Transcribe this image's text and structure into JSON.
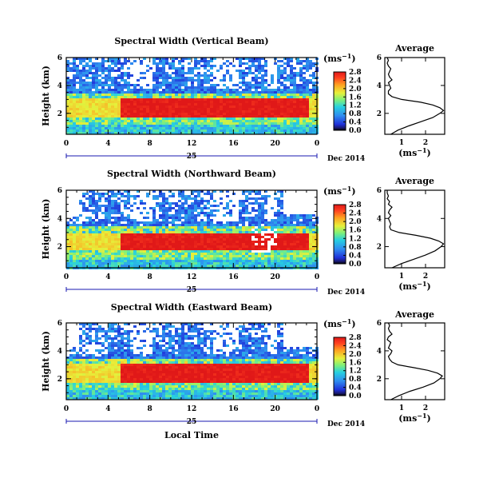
{
  "figure": {
    "xlabel": "Local Time",
    "colorbar_unit": "(ms",
    "colorbar_unit_exp": "−1",
    "avg_title": "Average",
    "avg_xlabel": "(ms",
    "avg_xlabel_exp": "−1",
    "day_label": "25",
    "month_label": "Dec 2014"
  },
  "chart_data": [
    {
      "type": "heatmap",
      "title": "Spectral Width (Vertical Beam)",
      "ylabel": "Height (km)",
      "xlabel": "Local Time",
      "x_ticks": [
        "0",
        "4",
        "8",
        "12",
        "16",
        "20",
        "0"
      ],
      "y_ticks": [
        "2",
        "4",
        "6"
      ],
      "xlim": [
        0,
        24
      ],
      "ylim": [
        0.5,
        6
      ],
      "colorbar": {
        "label": "(ms−1)",
        "range": [
          0.0,
          2.8
        ],
        "ticks": [
          "0.0",
          "0.4",
          "0.8",
          "1.2",
          "1.6",
          "2.0",
          "2.4",
          "2.8"
        ]
      },
      "average_profile": {
        "title": "Average",
        "xlabel": "(ms−1)",
        "x_ticks": [
          "1",
          "2"
        ],
        "y_ticks": [
          "2",
          "4",
          "6"
        ],
        "xlim": [
          0.3,
          2.8
        ],
        "ylim": [
          0.5,
          6
        ],
        "height_km": [
          0.5,
          0.8,
          1.1,
          1.4,
          1.7,
          2.0,
          2.2,
          2.4,
          2.6,
          2.8,
          3.0,
          3.2,
          3.4,
          3.6,
          3.8,
          4.0,
          4.2,
          4.4,
          4.6,
          4.8,
          5.0,
          5.2,
          5.4,
          5.6,
          5.8,
          6.0
        ],
        "width_ms": [
          0.55,
          0.85,
          1.3,
          1.8,
          2.3,
          2.6,
          2.75,
          2.6,
          2.3,
          1.8,
          1.0,
          0.6,
          0.45,
          0.45,
          0.55,
          0.5,
          0.45,
          0.6,
          0.5,
          0.45,
          0.5,
          0.55,
          0.45,
          0.4,
          0.45,
          0.4
        ]
      }
    },
    {
      "type": "heatmap",
      "title": "Spectral Width (Northward Beam)",
      "ylabel": "Height (km)",
      "xlabel": "Local Time",
      "x_ticks": [
        "0",
        "4",
        "8",
        "12",
        "16",
        "20",
        "0"
      ],
      "y_ticks": [
        "2",
        "4",
        "6"
      ],
      "xlim": [
        0,
        24
      ],
      "ylim": [
        0.5,
        6
      ],
      "colorbar": {
        "label": "(ms−1)",
        "range": [
          0.0,
          2.8
        ],
        "ticks": [
          "0.0",
          "0.4",
          "0.8",
          "1.2",
          "1.6",
          "2.0",
          "2.4",
          "2.8"
        ]
      },
      "average_profile": {
        "title": "Average",
        "xlabel": "(ms−1)",
        "x_ticks": [
          "1",
          "2"
        ],
        "y_ticks": [
          "2",
          "4",
          "6"
        ],
        "xlim": [
          0.3,
          2.8
        ],
        "ylim": [
          0.5,
          6
        ],
        "height_km": [
          0.5,
          0.8,
          1.1,
          1.4,
          1.7,
          2.0,
          2.2,
          2.4,
          2.6,
          2.8,
          3.0,
          3.2,
          3.4,
          3.6,
          3.8,
          4.0,
          4.2,
          4.4,
          4.6,
          4.8,
          5.0,
          5.2,
          5.4,
          5.6,
          5.8,
          6.0
        ],
        "width_ms": [
          0.6,
          1.0,
          1.5,
          2.0,
          2.4,
          2.65,
          2.75,
          2.55,
          2.2,
          1.6,
          0.9,
          0.55,
          0.5,
          0.55,
          0.5,
          0.45,
          0.55,
          0.45,
          0.5,
          0.6,
          0.45,
          0.5,
          0.4,
          0.45,
          0.4,
          0.4
        ]
      }
    },
    {
      "type": "heatmap",
      "title": "Spectral Width (Eastward Beam)",
      "ylabel": "Height (km)",
      "xlabel": "Local Time",
      "x_ticks": [
        "0",
        "4",
        "8",
        "12",
        "16",
        "20",
        "0"
      ],
      "y_ticks": [
        "2",
        "4",
        "6"
      ],
      "xlim": [
        0,
        24
      ],
      "ylim": [
        0.5,
        6
      ],
      "colorbar": {
        "label": "(ms−1)",
        "range": [
          0.0,
          2.8
        ],
        "ticks": [
          "0.0",
          "0.4",
          "0.8",
          "1.2",
          "1.6",
          "2.0",
          "2.4",
          "2.8"
        ]
      },
      "average_profile": {
        "title": "Average",
        "xlabel": "(ms−1)",
        "x_ticks": [
          "1",
          "2"
        ],
        "y_ticks": [
          "2",
          "4",
          "6"
        ],
        "xlim": [
          0.3,
          2.8
        ],
        "ylim": [
          0.5,
          6
        ],
        "height_km": [
          0.5,
          0.8,
          1.1,
          1.4,
          1.7,
          2.0,
          2.2,
          2.4,
          2.6,
          2.8,
          3.0,
          3.2,
          3.4,
          3.6,
          3.8,
          4.0,
          4.2,
          4.4,
          4.6,
          4.8,
          5.0,
          5.2,
          5.4,
          5.6,
          5.8,
          6.0
        ],
        "width_ms": [
          0.55,
          0.9,
          1.35,
          1.9,
          2.35,
          2.6,
          2.7,
          2.5,
          2.1,
          1.5,
          0.85,
          0.6,
          0.5,
          0.45,
          0.55,
          0.6,
          0.45,
          0.5,
          0.55,
          0.4,
          0.45,
          0.6,
          0.5,
          0.45,
          0.5,
          0.45
        ]
      }
    }
  ]
}
